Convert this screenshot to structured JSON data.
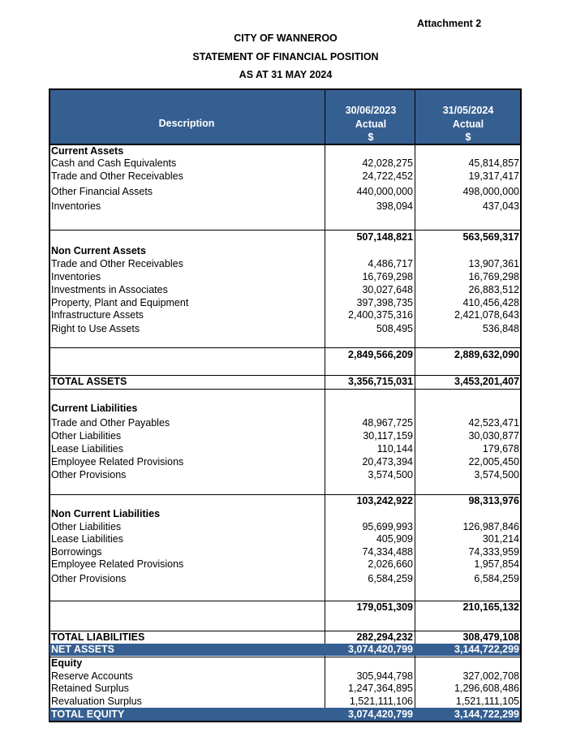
{
  "header": {
    "attachment": "Attachment 2",
    "title": "CITY OF WANNEROO",
    "subtitle": "STATEMENT OF FINANCIAL POSITION",
    "date": "AS AT 31 MAY 2024"
  },
  "table": {
    "columns": [
      [
        "Description"
      ],
      [
        "30/06/2023",
        "Actual",
        "$"
      ],
      [
        "31/05/2024",
        "Actual",
        "$"
      ]
    ],
    "rows": [
      [
        "Current Assets"
      ],
      [
        "Cash and Cash Equivalents",
        "42,028,275",
        "45,814,857"
      ],
      [
        "Trade and Other Receivables",
        "24,722,452",
        "19,317,417"
      ],
      [
        "Other Financial Assets",
        "440,000,000",
        "498,000,000"
      ],
      [
        "Inventories",
        "398,094",
        "437,043"
      ],
      [
        null,
        "507,148,821",
        "563,569,317"
      ],
      [
        "Non Current Assets"
      ],
      [
        "Trade and Other Receivables",
        "4,486,717",
        "13,907,361"
      ],
      [
        "Inventories",
        "16,769,298",
        "16,769,298"
      ],
      [
        "Investments in Associates",
        "30,027,648",
        "26,883,512"
      ],
      [
        "Property, Plant and Equipment",
        "397,398,735",
        "410,456,428"
      ],
      [
        "Infrastructure Assets",
        "2,400,375,316",
        "2,421,078,643"
      ],
      [
        "Right to Use Assets",
        "508,495",
        "536,848"
      ],
      [
        null,
        "2,849,566,209",
        "2,889,632,090"
      ],
      [
        "TOTAL ASSETS",
        "3,356,715,031",
        "3,453,201,407"
      ],
      [
        "Current Liabilities"
      ],
      [
        "Trade and Other Payables",
        "48,967,725",
        "42,523,471"
      ],
      [
        "Other Liabilities",
        "30,117,159",
        "30,030,877"
      ],
      [
        "Lease Liabilities",
        "110,144",
        "179,678"
      ],
      [
        "Employee Related Provisions",
        "20,473,394",
        "22,005,450"
      ],
      [
        "Other Provisions",
        "3,574,500",
        "3,574,500"
      ],
      [
        null,
        "103,242,922",
        "98,313,976"
      ],
      [
        "Non Current Liabilities"
      ],
      [
        "Other Liabilities",
        "95,699,993",
        "126,987,846"
      ],
      [
        "Lease Liabilities",
        "405,909",
        "301,214"
      ],
      [
        "Borrowings",
        "74,334,488",
        "74,333,959"
      ],
      [
        "Employee Related Provisions",
        "2,026,660",
        "1,957,854"
      ],
      [
        "Other Provisions",
        "6,584,259",
        "6,584,259"
      ],
      [
        null,
        "179,051,309",
        "210,165,132"
      ],
      [
        "TOTAL LIABILITIES",
        "282,294,232",
        "308,479,108"
      ],
      [
        "NET ASSETS",
        "3,074,420,799",
        "3,144,722,299"
      ],
      [
        "Equity"
      ],
      [
        "Reserve Accounts",
        "305,944,798",
        "327,002,708"
      ],
      [
        "Retained Surplus",
        "1,247,364,895",
        "1,296,608,486"
      ],
      [
        "Revaluation Surplus",
        "1,521,111,106",
        "1,521,111,105"
      ],
      [
        "TOTAL EQUITY",
        "3,074,420,799",
        "3,144,722,299"
      ]
    ]
  }
}
